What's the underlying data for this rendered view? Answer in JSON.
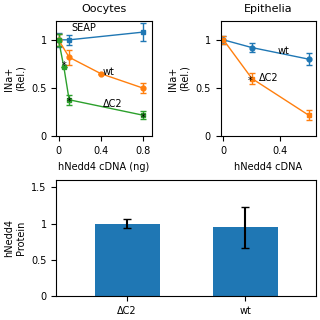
{
  "chart_data": [
    {
      "type": "line",
      "title": "Oocytes",
      "x_label": "hNedd4 cDNA (ng)",
      "y_label": "INa+\n(Rel.)",
      "xlim": [
        -0.02,
        0.88
      ],
      "ylim": [
        0,
        1.2
      ],
      "xticks": [
        0,
        0.4,
        0.8
      ],
      "yticks": [
        0,
        0.5,
        1
      ],
      "series": [
        {
          "x": [
            0,
            0.1,
            0.8
          ],
          "values": [
            1.0,
            1.0,
            1.08
          ],
          "errors": [
            0.07,
            0.05,
            0.09
          ],
          "marker": "square",
          "line_style": "solid"
        },
        {
          "x": [
            0,
            0.1,
            0.4,
            0.8
          ],
          "values": [
            1.0,
            0.82,
            0.65,
            0.5
          ],
          "errors": [
            0.06,
            0.08,
            0.0,
            0.05
          ],
          "marker": "circle",
          "line_style": "solid"
        },
        {
          "x": [
            0,
            0.05,
            0.1,
            0.8
          ],
          "values": [
            1.0,
            0.72,
            0.38,
            0.22
          ],
          "errors": [
            0.06,
            0.0,
            0.05,
            0.04
          ],
          "marker": "square",
          "line_style": "solid"
        }
      ],
      "annotations": [
        {
          "text": "SEAP",
          "x": 0.12,
          "y": 1.07
        },
        {
          "text": "wt",
          "x": 0.42,
          "y": 0.62
        },
        {
          "text": "ΔC2",
          "x": 0.42,
          "y": 0.28
        },
        {
          "text": "*",
          "x": 0.03,
          "y": 0.68
        },
        {
          "text": "*",
          "x": 0.08,
          "y": 0.3
        },
        {
          "text": "*",
          "x": 0.78,
          "y": 0.14
        }
      ]
    },
    {
      "type": "line",
      "title": "Epithelia",
      "x_label": "hNedd4 cDNA",
      "y_label": "INa+\n(Rel.)",
      "xlim": [
        -0.02,
        0.65
      ],
      "ylim": [
        0,
        1.2
      ],
      "xticks": [
        0,
        0.4
      ],
      "yticks": [
        0,
        0.5,
        1
      ],
      "series": [
        {
          "x": [
            0,
            0.2,
            0.6
          ],
          "values": [
            1.0,
            0.92,
            0.8
          ],
          "errors": [
            0.04,
            0.05,
            0.06
          ],
          "marker": "circle",
          "line_style": "solid"
        },
        {
          "x": [
            0,
            0.2,
            0.6
          ],
          "values": [
            1.0,
            0.6,
            0.22
          ],
          "errors": [
            0.04,
            0.06,
            0.05
          ],
          "marker": "square",
          "line_style": "solid"
        }
      ],
      "annotations": [
        {
          "text": "wt",
          "x": 0.38,
          "y": 0.83
        },
        {
          "text": "ΔC2",
          "x": 0.25,
          "y": 0.55
        },
        {
          "text": "*",
          "x": 0.17,
          "y": 0.52
        }
      ]
    },
    {
      "type": "bar",
      "y_label": "hNedd4\nProtein",
      "categories": [
        "ΔC2",
        "wt"
      ],
      "values": [
        1.0,
        0.95
      ],
      "errors": [
        0.06,
        0.28
      ],
      "ylim": [
        0,
        1.6
      ],
      "yticks": [
        0,
        0.5,
        1,
        1.5
      ]
    }
  ]
}
